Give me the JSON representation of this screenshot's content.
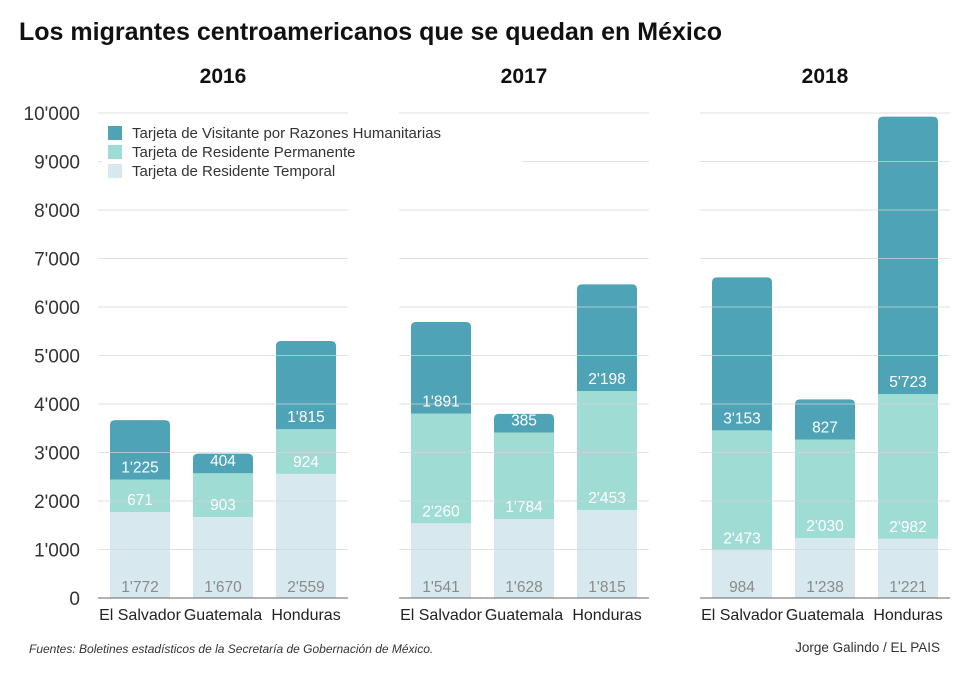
{
  "title": "Los migrantes centroamericanos que se quedan en México",
  "source": "Fuentes: Boletines estadísticos de la Secretaría de Gobernación de México.",
  "credit": "Jorge Galindo / EL PAIS",
  "chart_data": [
    {
      "type": "bar",
      "stacked": true,
      "title": "2016",
      "categories": [
        "El Salvador",
        "Guatemala",
        "Honduras"
      ],
      "series": [
        {
          "name": "Tarjeta de Residente Temporal",
          "values": [
            1772,
            1670,
            2559
          ],
          "labels": [
            "1'772",
            "1'670",
            "2'559"
          ]
        },
        {
          "name": "Tarjeta de Residente Permanente",
          "values": [
            671,
            903,
            924
          ],
          "labels": [
            "671",
            "903",
            "924"
          ]
        },
        {
          "name": "Tarjeta de Visitante por Razones Humanitarias",
          "values": [
            1225,
            404,
            1815
          ],
          "labels": [
            "1'225",
            "404",
            "1'815"
          ]
        }
      ]
    },
    {
      "type": "bar",
      "stacked": true,
      "title": "2017",
      "categories": [
        "El Salvador",
        "Guatemala",
        "Honduras"
      ],
      "series": [
        {
          "name": "Tarjeta de Residente Temporal",
          "values": [
            1541,
            1628,
            1815
          ],
          "labels": [
            "1'541",
            "1'628",
            "1'815"
          ]
        },
        {
          "name": "Tarjeta de Residente Permanente",
          "values": [
            2260,
            1784,
            2453
          ],
          "labels": [
            "2'260",
            "1'784",
            "2'453"
          ]
        },
        {
          "name": "Tarjeta de Visitante por Razones Humanitarias",
          "values": [
            1891,
            385,
            2198
          ],
          "labels": [
            "1'891",
            "385",
            "2'198"
          ]
        }
      ]
    },
    {
      "type": "bar",
      "stacked": true,
      "title": "2018",
      "categories": [
        "El Salvador",
        "Guatemala",
        "Honduras"
      ],
      "series": [
        {
          "name": "Tarjeta de Residente Temporal",
          "values": [
            984,
            1238,
            1221
          ],
          "labels": [
            "984",
            "1'238",
            "1'221"
          ]
        },
        {
          "name": "Tarjeta de Residente Permanente",
          "values": [
            2473,
            2030,
            2982
          ],
          "labels": [
            "2'473",
            "2'030",
            "2'982"
          ]
        },
        {
          "name": "Tarjeta de Visitante por Razones Humanitarias",
          "values": [
            3153,
            827,
            5723
          ],
          "labels": [
            "3'153",
            "827",
            "5'723"
          ]
        }
      ]
    }
  ],
  "y_axis": {
    "ylim": [
      0,
      10000
    ],
    "ticks": [
      0,
      1000,
      2000,
      3000,
      4000,
      5000,
      6000,
      7000,
      8000,
      9000,
      10000
    ],
    "tick_labels": [
      "0",
      "1'000",
      "2'000",
      "3'000",
      "4'000",
      "5'000",
      "6'000",
      "7'000",
      "8'000",
      "9'000",
      "10'000"
    ],
    "grid": true
  },
  "legend": {
    "placement": "top-left",
    "items": [
      {
        "label": "Tarjeta de Visitante por Razones Humanitarias",
        "color": "#4fa3b6"
      },
      {
        "label": "Tarjeta de Residente Permanente",
        "color": "#9fdcd3"
      },
      {
        "label": "Tarjeta de Residente Temporal",
        "color": "#d7e9ee"
      }
    ]
  },
  "colors": {
    "temporal": "#d7e9ee",
    "permanente": "#9fdcd3",
    "humanitarias": "#4fa3b6",
    "temporal_label": "#8a8a8a",
    "label": "#ffffff"
  }
}
